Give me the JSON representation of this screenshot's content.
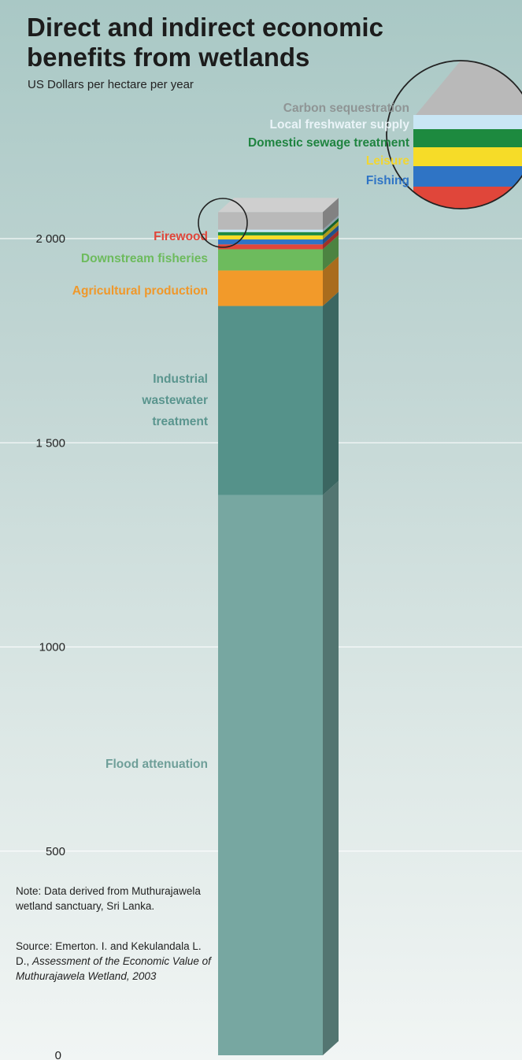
{
  "title": "Direct and indirect economic benefits from wetlands",
  "subtitle": "US Dollars per hectare per year",
  "note": "Note: Data derived from Muthurajawela wetland sanctuary, Sri Lanka.",
  "source": {
    "prefix": "Source: Emerton. I. and Kekulandala L. D., ",
    "title": "Assessment of the Economic Value of Muthurajawela Wetland, 2003"
  },
  "chart_data": {
    "type": "bar",
    "title": "Direct and indirect economic benefits from wetlands",
    "ylabel": "US Dollars per hectare per year",
    "ylim": [
      0,
      2000
    ],
    "yticks": [
      {
        "value": 0,
        "label": "0"
      },
      {
        "value": 500,
        "label": "500"
      },
      {
        "value": 1000,
        "label": "1000"
      },
      {
        "value": 1500,
        "label": "1 500"
      },
      {
        "value": 2000,
        "label": "2 000"
      }
    ],
    "grid": true,
    "stacked": true,
    "categories": [
      "Muthurajawela wetland"
    ],
    "series": [
      {
        "name": "Flood attenuation",
        "values": [
          1372
        ],
        "color": "#77a7a1",
        "label_color": "#6f9f99"
      },
      {
        "name": "Industrial wastewater treatment",
        "values": [
          463
        ],
        "color": "#55928a",
        "label_color": "#5a958e"
      },
      {
        "name": "Agricultural production",
        "values": [
          87
        ],
        "color": "#f29a2a",
        "label_color": "#f0982a"
      },
      {
        "name": "Downstream fisheries",
        "values": [
          52
        ],
        "color": "#6dbb5d",
        "label_color": "#6dbb5d"
      },
      {
        "name": "Firewood",
        "values": [
          12
        ],
        "color": "#e0463a",
        "label_color": "#e0463a"
      },
      {
        "name": "Fishing",
        "values": [
          12
        ],
        "color": "#2f74c5",
        "label_color": "#2f74c5"
      },
      {
        "name": "Leisure",
        "values": [
          10
        ],
        "color": "#f6dc28",
        "label_color": "#f2d630"
      },
      {
        "name": "Domestic sewage treatment",
        "values": [
          8
        ],
        "color": "#1d8a3f",
        "label_color": "#1f8440"
      },
      {
        "name": "Local freshwater supply",
        "values": [
          6
        ],
        "color": "#c9e6f4",
        "label_color": "#eaf4f8"
      },
      {
        "name": "Carbon sequestration",
        "values": [
          43
        ],
        "color": "#b9b9b9",
        "label_color": "#8f9595"
      }
    ]
  }
}
